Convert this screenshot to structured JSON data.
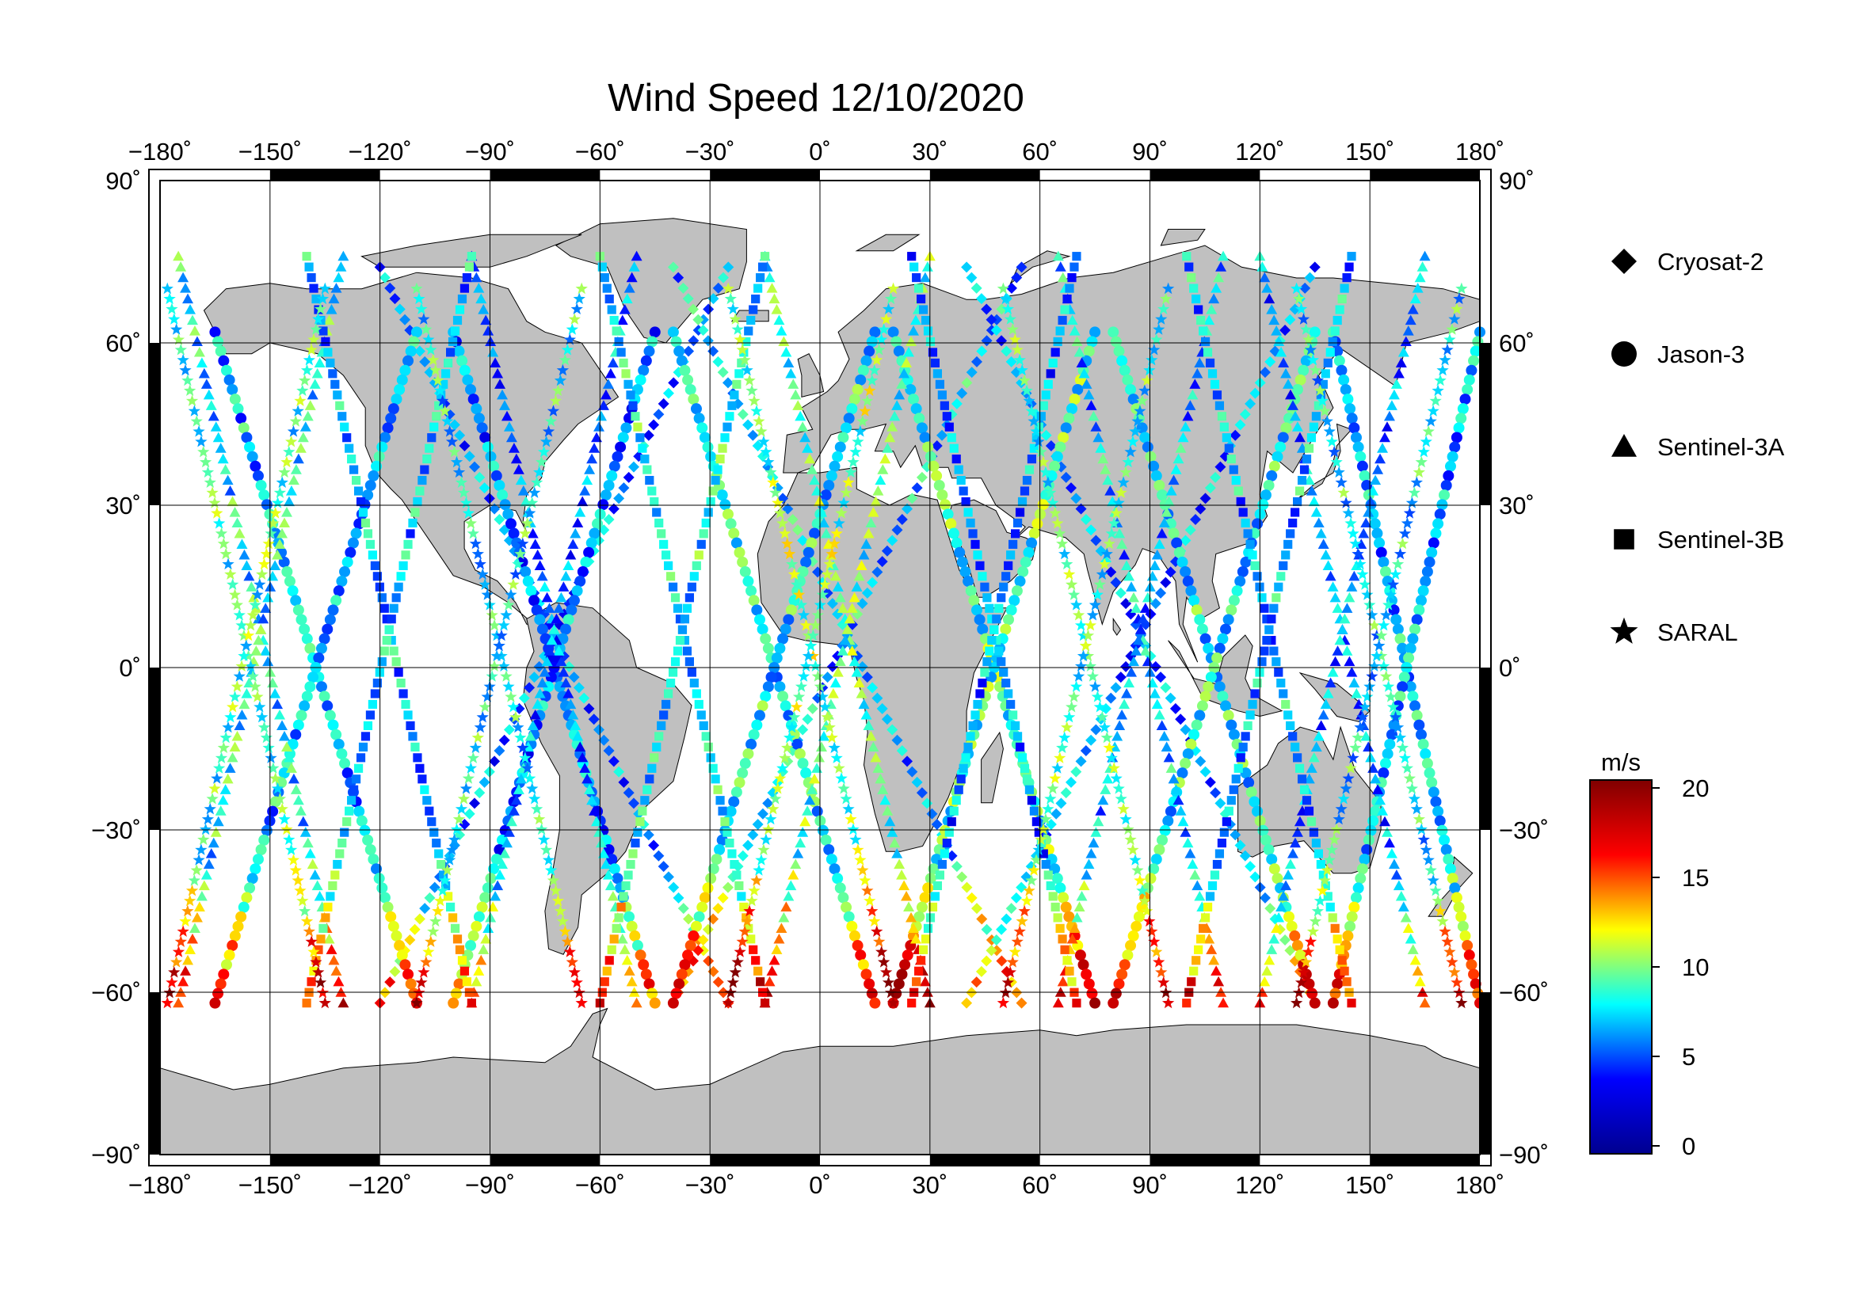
{
  "title": "Wind Speed 12/10/2020",
  "map": {
    "lon_ticks": [
      "−180˚",
      "−150˚",
      "−120˚",
      "−90˚",
      "−60˚",
      "−30˚",
      "0˚",
      "30˚",
      "60˚",
      "90˚",
      "120˚",
      "150˚",
      "180˚"
    ],
    "lat_ticks": [
      "90˚",
      "60˚",
      "30˚",
      "0˚",
      "−30˚",
      "−60˚",
      "−90˚"
    ],
    "land_color": "#c0c0c0",
    "ocean_color": "#ffffff"
  },
  "legend": {
    "items": [
      {
        "label": "Cryosat-2",
        "shape": "diamond"
      },
      {
        "label": "Jason-3",
        "shape": "circle"
      },
      {
        "label": "Sentinel-3A",
        "shape": "triangle"
      },
      {
        "label": "Sentinel-3B",
        "shape": "square"
      },
      {
        "label": "SARAL",
        "shape": "star"
      }
    ]
  },
  "colorbar": {
    "unit": "m/s",
    "ticks": [
      "20",
      "15",
      "10",
      "5",
      "0"
    ],
    "range": [
      0,
      20
    ],
    "colormap": [
      "#00008f",
      "#0000ff",
      "#00ffff",
      "#ffff00",
      "#ff0000",
      "#800000"
    ]
  },
  "chart_data": {
    "type": "scatter",
    "title": "Wind Speed 12/10/2020",
    "xlim": [
      -180,
      180
    ],
    "ylim": [
      -90,
      90
    ],
    "colorbar_range": [
      0,
      20
    ],
    "series": [
      {
        "name": "Cryosat-2",
        "marker": "diamond",
        "tracks": [
          [
            -120,
            74,
            -25,
            -62,
            6
          ],
          [
            -40,
            74,
            55,
            -62,
            7
          ],
          [
            40,
            74,
            135,
            -62,
            6
          ]
        ]
      },
      {
        "name": "Jason-3",
        "marker": "circle",
        "tracks": [
          [
            -165,
            62,
            -110,
            -62,
            7
          ],
          [
            -100,
            62,
            -45,
            -62,
            6
          ],
          [
            -40,
            62,
            15,
            -62,
            8
          ],
          [
            20,
            62,
            75,
            -62,
            9
          ],
          [
            80,
            62,
            135,
            -62,
            8
          ],
          [
            140,
            62,
            180,
            -62,
            7
          ]
        ]
      },
      {
        "name": "Sentinel-3A",
        "marker": "triangle",
        "tracks": [
          [
            -175,
            76,
            -130,
            -62,
            8
          ],
          [
            -95,
            76,
            -50,
            -62,
            6
          ],
          [
            -15,
            76,
            30,
            -62,
            9
          ],
          [
            65,
            76,
            110,
            -62,
            7
          ],
          [
            120,
            76,
            165,
            -62,
            6
          ]
        ]
      },
      {
        "name": "Sentinel-3B",
        "marker": "square",
        "tracks": [
          [
            -140,
            76,
            -95,
            -62,
            7
          ],
          [
            -60,
            76,
            -15,
            -62,
            8
          ],
          [
            25,
            76,
            70,
            -62,
            6
          ],
          [
            100,
            76,
            145,
            -62,
            7
          ]
        ]
      },
      {
        "name": "SARAL",
        "marker": "star",
        "tracks": [
          [
            -178,
            70,
            -135,
            -62,
            9
          ],
          [
            -110,
            70,
            -65,
            -62,
            8
          ],
          [
            -25,
            70,
            20,
            -62,
            10
          ],
          [
            50,
            70,
            95,
            -62,
            9
          ],
          [
            130,
            70,
            175,
            -62,
            8
          ]
        ]
      }
    ]
  }
}
